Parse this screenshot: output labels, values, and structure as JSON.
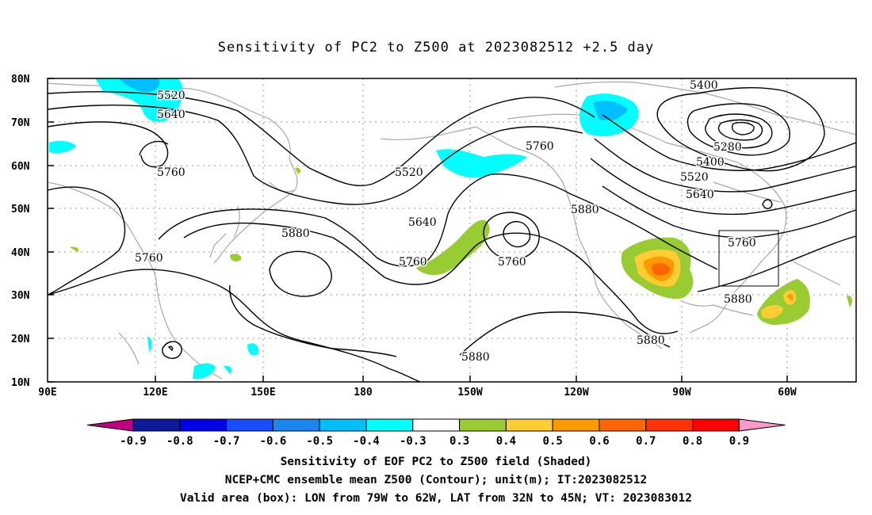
{
  "title": "Sensitivity of PC2 to Z500 at 2023082512 +2.5 day",
  "map": {
    "lat_labels": [
      "80N",
      "70N",
      "60N",
      "50N",
      "40N",
      "30N",
      "20N",
      "10N"
    ],
    "lon_labels": [
      "90E",
      "120E",
      "150E",
      "180",
      "150W",
      "120W",
      "90W",
      "60W"
    ],
    "contour_labels": [
      "5520",
      "5640",
      "5760",
      "5520",
      "5760",
      "5640",
      "5760",
      "5760",
      "5880",
      "5760",
      "5880",
      "5400",
      "5280",
      "5400",
      "5520",
      "5640",
      "5760",
      "5880",
      "5880",
      "5880"
    ],
    "valid_box": {
      "lon_min": "79W",
      "lon_max": "62W",
      "lat_min": "32N",
      "lat_max": "45N"
    }
  },
  "colorbar": {
    "labels": [
      "-0.9",
      "-0.8",
      "-0.7",
      "-0.6",
      "-0.5",
      "-0.4",
      "-0.3",
      "0.3",
      "0.4",
      "0.5",
      "0.6",
      "0.7",
      "0.8",
      "0.9"
    ],
    "colors": [
      "#c0007f",
      "#0d1a9a",
      "#0000e6",
      "#1a4cff",
      "#1a86f0",
      "#00bfff",
      "#00ffff",
      "#ffffff",
      "#99cc33",
      "#ffcc33",
      "#ff9900",
      "#ff6600",
      "#ff3300",
      "#ff0000",
      "#ff99cc"
    ]
  },
  "caption": {
    "line1": "Sensitivity of EOF PC2 to Z500 field (Shaded)",
    "line2": "NCEP+CMC ensemble mean Z500 (Contour); unit(m); IT:2023082512",
    "line3": "Valid area (box): LON from 79W to 62W, LAT from 32N to 45N; VT: 2023083012"
  }
}
